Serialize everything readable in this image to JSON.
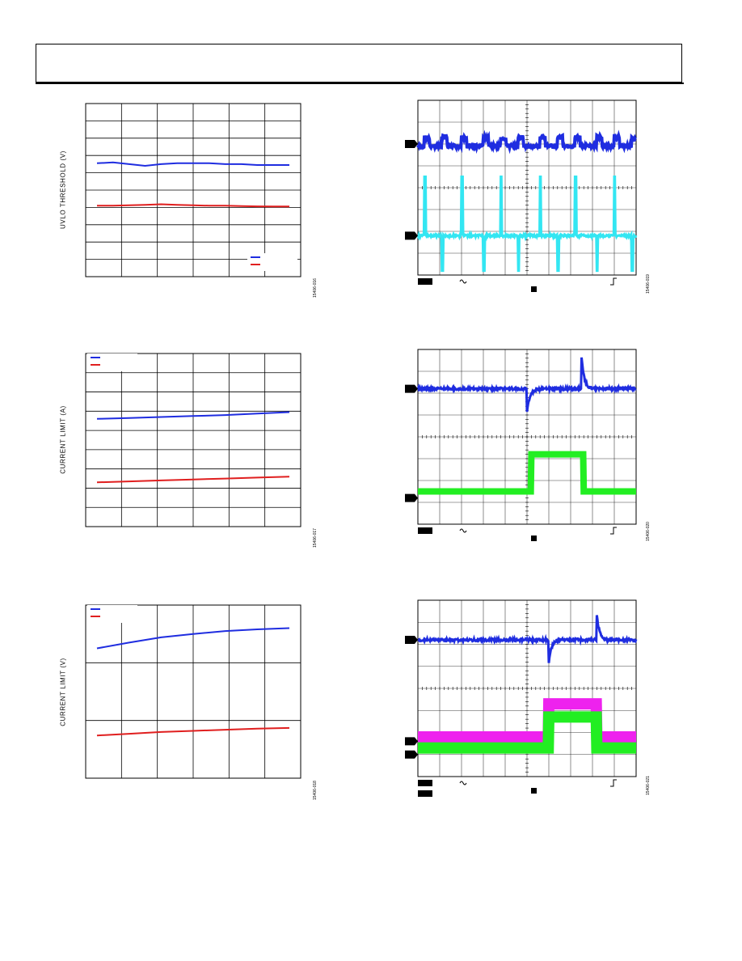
{
  "page": {
    "figure_ids": [
      "15406-016",
      "15406-017",
      "15406-018",
      "15406-019",
      "15406-020",
      "15406-021"
    ]
  },
  "colors": {
    "blue": "#1f2de0",
    "red": "#e01f1f",
    "cyan": "#33e6f2",
    "green": "#22ee22",
    "magenta": "#ee22ee",
    "grid": "#000000"
  },
  "chart_data": [
    {
      "type": "line",
      "ylabel": "UVLO THRESHOLD (V)",
      "xlabel": "",
      "grid": true,
      "legend": "bottom-right",
      "x": [
        0,
        0.5,
        1,
        1.5,
        2,
        2.5,
        3,
        3.5,
        4,
        4.5,
        5,
        5.5,
        6
      ],
      "xlim": [
        0,
        6
      ],
      "ylim": [
        0,
        10
      ],
      "series": [
        {
          "color": "blue",
          "values": [
            6.55,
            6.6,
            6.5,
            6.4,
            6.5,
            6.55,
            6.55,
            6.55,
            6.5,
            6.5,
            6.45,
            6.45,
            6.45
          ]
        },
        {
          "color": "red",
          "values": [
            4.1,
            4.1,
            4.12,
            4.15,
            4.18,
            4.15,
            4.12,
            4.1,
            4.1,
            4.08,
            4.06,
            4.05,
            4.05
          ]
        }
      ]
    },
    {
      "type": "line",
      "ylabel": "CURRENT LIMIT (A)",
      "xlabel": "",
      "grid": true,
      "legend": "top-left",
      "x": [
        0,
        1,
        2,
        3,
        4,
        5,
        6
      ],
      "xlim": [
        0,
        6
      ],
      "ylim": [
        0,
        9
      ],
      "series": [
        {
          "color": "blue",
          "values": [
            5.6,
            5.65,
            5.7,
            5.75,
            5.8,
            5.88,
            5.95
          ]
        },
        {
          "color": "red",
          "values": [
            2.3,
            2.35,
            2.4,
            2.45,
            2.5,
            2.55,
            2.6
          ]
        }
      ]
    },
    {
      "type": "line",
      "ylabel": "CURRENT LIMIT (V)",
      "xlabel": "",
      "grid": true,
      "legend": "top-left",
      "x": [
        0,
        1,
        2,
        3,
        4,
        5,
        6
      ],
      "xlim": [
        0,
        6
      ],
      "ylim": [
        0,
        3
      ],
      "series": [
        {
          "color": "blue",
          "values": [
            2.25,
            2.35,
            2.44,
            2.5,
            2.55,
            2.58,
            2.6
          ]
        },
        {
          "color": "red",
          "values": [
            0.74,
            0.77,
            0.8,
            0.82,
            0.84,
            0.86,
            0.87
          ]
        }
      ]
    },
    {
      "type": "scope",
      "grid": true,
      "divisions": {
        "x": 10,
        "y": 8
      },
      "ylim": [
        0,
        8
      ],
      "traces": [
        {
          "color": "blue",
          "marker_level": 6.0,
          "shape": "square",
          "high": 6.3,
          "low": 5.9,
          "edges": [
            0.15,
            0.55,
            1.0,
            1.5,
            1.9,
            2.3,
            2.8,
            3.2,
            3.6,
            4.1,
            4.5,
            4.9
          ]
        },
        {
          "color": "cyan",
          "marker_level": 1.8,
          "shape": "pulse",
          "base": 1.8,
          "pulse_top": 4.5,
          "edges": [
            0.15,
            0.55,
            1.0,
            1.5,
            1.9,
            2.3,
            2.8,
            3.2,
            3.6,
            4.1,
            4.5,
            4.9
          ]
        }
      ]
    },
    {
      "type": "scope",
      "grid": true,
      "divisions": {
        "x": 10,
        "y": 8
      },
      "ylim": [
        0,
        8
      ],
      "traces": [
        {
          "color": "blue",
          "marker_level": 6.2,
          "shape": "transient",
          "level": 6.2,
          "events": [
            {
              "t": 5.0,
              "dir": -1,
              "mag": 1.1
            },
            {
              "t": 7.5,
              "dir": 1,
              "mag": 1.4
            }
          ]
        },
        {
          "color": "green",
          "marker_level": 1.2,
          "shape": "step",
          "low": 1.5,
          "high": 3.2,
          "rise": 5.2,
          "fall": 7.6
        }
      ]
    },
    {
      "type": "scope",
      "grid": true,
      "divisions": {
        "x": 10,
        "y": 8
      },
      "ylim": [
        0,
        8
      ],
      "traces": [
        {
          "color": "blue",
          "marker_level": 6.2,
          "shape": "transient",
          "level": 6.2,
          "events": [
            {
              "t": 6.0,
              "dir": -1,
              "mag": 1.0
            },
            {
              "t": 8.2,
              "dir": 1,
              "mag": 1.1
            }
          ]
        },
        {
          "color": "magenta",
          "marker_level": 1.6,
          "shape": "step",
          "low": 1.8,
          "high": 3.3,
          "rise": 6.0,
          "fall": 8.2
        },
        {
          "color": "green",
          "marker_level": 1.0,
          "shape": "step",
          "low": 1.3,
          "high": 2.7,
          "rise": 6.0,
          "fall": 8.2
        }
      ]
    }
  ]
}
